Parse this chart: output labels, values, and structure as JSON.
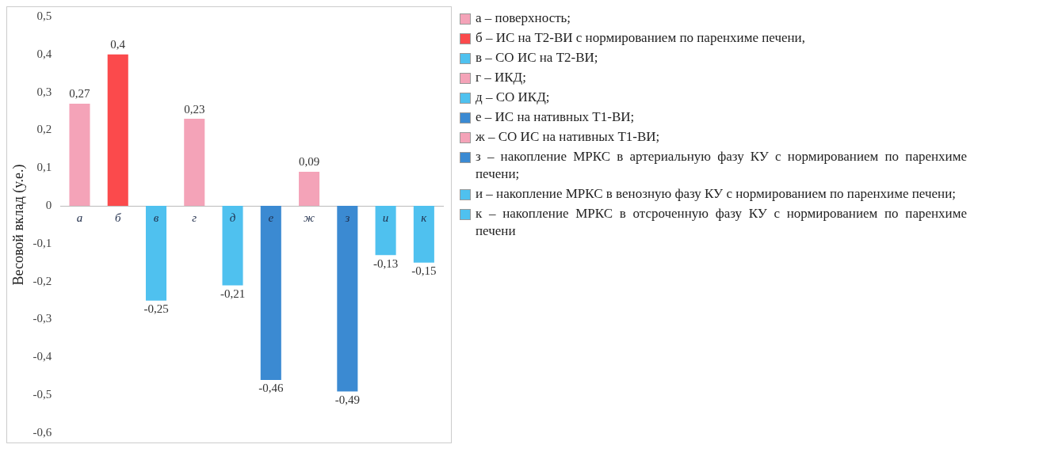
{
  "chart_data": {
    "type": "bar",
    "ylabel": "Весовой вклад (у.е.)",
    "categories": [
      "а",
      "б",
      "в",
      "г",
      "д",
      "е",
      "ж",
      "з",
      "и",
      "к"
    ],
    "values": [
      0.27,
      0.4,
      -0.25,
      0.23,
      -0.21,
      -0.46,
      0.09,
      -0.49,
      -0.13,
      -0.15
    ],
    "value_labels": [
      "0,27",
      "0,4",
      "-0,25",
      "0,23",
      "-0,21",
      "-0,46",
      "0,09",
      "-0,49",
      "-0,13",
      "-0,15"
    ],
    "colors": [
      "#f4a3b8",
      "#fb4a4c",
      "#4fc1ef",
      "#f4a3b8",
      "#4fc1ef",
      "#3b8ad2",
      "#f4a3b8",
      "#3b8ad2",
      "#4fc1ef",
      "#4fc1ef"
    ],
    "ylim": [
      -0.6,
      0.5
    ],
    "yticks": [
      {
        "value": 0.5,
        "label": "0,5"
      },
      {
        "value": 0.4,
        "label": "0,4"
      },
      {
        "value": 0.3,
        "label": "0,3"
      },
      {
        "value": 0.2,
        "label": "0,2"
      },
      {
        "value": 0.1,
        "label": "0,1"
      },
      0,
      {
        "value": -0.1,
        "label": "-0,1"
      },
      {
        "value": -0.2,
        "label": "-0,2"
      },
      {
        "value": -0.3,
        "label": "-0,3"
      },
      {
        "value": -0.4,
        "label": "-0,4"
      },
      {
        "value": -0.5,
        "label": "-0,5"
      },
      {
        "value": -0.6,
        "label": "-0,6"
      }
    ],
    "grid": false,
    "annotations": [
      "а – поверхность;",
      "б – ИС на Т2-ВИ с нормированием по паренхиме печени,",
      "в – СО ИС на Т2-ВИ;",
      "г – ИКД;",
      "д – СО ИКД;",
      "е – ИС на нативных Т1-ВИ;",
      "ж – СО ИС на нативных Т1-ВИ;",
      "з – накопление МРКС в артериальную фазу КУ с нормированием по паренхиме печени;",
      "и – накопление МРКС в венозную фазу КУ с нормированием по паренхиме печени;",
      "к – накопление МРКС в отсроченную фазу КУ с нормированием по паренхиме печени"
    ]
  }
}
